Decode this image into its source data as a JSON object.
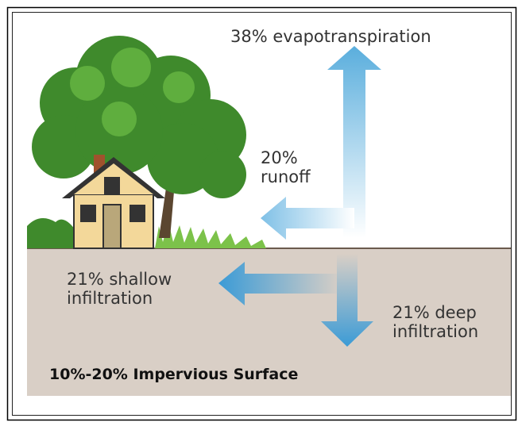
{
  "labels": {
    "evapotranspiration": [
      "38% evapotranspiration"
    ],
    "runoff": [
      "20%",
      "runoff"
    ],
    "shallow_infiltration": [
      "21% shallow",
      "infiltration"
    ],
    "deep_infiltration": [
      "21% deep",
      "infiltration"
    ]
  },
  "caption": "10%-20% Impervious Surface"
}
